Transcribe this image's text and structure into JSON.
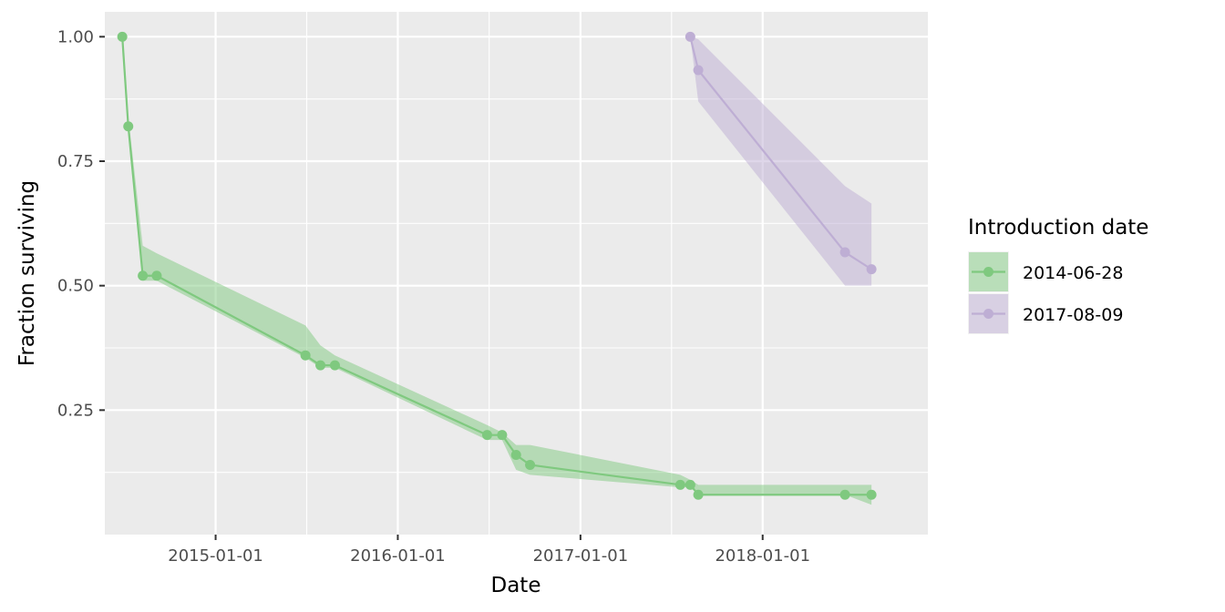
{
  "chart_data": {
    "type": "line",
    "xlabel": "Date",
    "ylabel": "Fraction surviving",
    "xlim": [
      "2014-05-24",
      "2018-11-28"
    ],
    "ylim": [
      0.0,
      1.05
    ],
    "x_ticks": [
      "2015-01-01",
      "2016-01-01",
      "2017-01-01",
      "2018-01-01"
    ],
    "y_ticks": [
      0.25,
      0.5,
      0.75,
      1.0
    ],
    "y_tick_labels": [
      "0.25",
      "0.50",
      "0.75",
      "1.00"
    ],
    "grid": true,
    "legend": {
      "title": "Introduction date",
      "position": "right"
    },
    "series": [
      {
        "name": "2014-06-28",
        "color": "#7fc97f",
        "points": [
          {
            "x": "2014-06-28",
            "y": 1.0
          },
          {
            "x": "2014-07-10",
            "y": 0.82
          },
          {
            "x": "2014-08-08",
            "y": 0.52
          },
          {
            "x": "2014-09-05",
            "y": 0.52
          },
          {
            "x": "2015-06-30",
            "y": 0.36
          },
          {
            "x": "2015-07-30",
            "y": 0.34
          },
          {
            "x": "2015-08-28",
            "y": 0.34
          },
          {
            "x": "2016-06-28",
            "y": 0.2
          },
          {
            "x": "2016-07-28",
            "y": 0.2
          },
          {
            "x": "2016-08-25",
            "y": 0.16
          },
          {
            "x": "2016-09-22",
            "y": 0.14
          },
          {
            "x": "2017-07-20",
            "y": 0.1
          },
          {
            "x": "2017-08-09",
            "y": 0.1
          },
          {
            "x": "2017-08-25",
            "y": 0.08
          },
          {
            "x": "2018-06-15",
            "y": 0.08
          },
          {
            "x": "2018-08-07",
            "y": 0.08
          }
        ],
        "band": [
          {
            "x": "2014-06-28",
            "lower": 1.0,
            "upper": 1.0
          },
          {
            "x": "2014-07-10",
            "lower": 0.81,
            "upper": 0.84
          },
          {
            "x": "2014-08-08",
            "lower": 0.51,
            "upper": 0.58
          },
          {
            "x": "2014-09-05",
            "lower": 0.51,
            "upper": 0.565
          },
          {
            "x": "2015-06-30",
            "lower": 0.355,
            "upper": 0.42
          },
          {
            "x": "2015-07-30",
            "lower": 0.335,
            "upper": 0.38
          },
          {
            "x": "2015-08-28",
            "lower": 0.335,
            "upper": 0.36
          },
          {
            "x": "2016-06-28",
            "lower": 0.19,
            "upper": 0.22
          },
          {
            "x": "2016-07-28",
            "lower": 0.19,
            "upper": 0.205
          },
          {
            "x": "2016-08-25",
            "lower": 0.13,
            "upper": 0.18
          },
          {
            "x": "2016-09-22",
            "lower": 0.12,
            "upper": 0.18
          },
          {
            "x": "2017-07-20",
            "lower": 0.095,
            "upper": 0.12
          },
          {
            "x": "2017-08-09",
            "lower": 0.095,
            "upper": 0.11
          },
          {
            "x": "2017-08-25",
            "lower": 0.08,
            "upper": 0.1
          },
          {
            "x": "2018-06-15",
            "lower": 0.08,
            "upper": 0.1
          },
          {
            "x": "2018-08-07",
            "lower": 0.06,
            "upper": 0.1
          }
        ]
      },
      {
        "name": "2017-08-09",
        "color": "#beaed4",
        "points": [
          {
            "x": "2017-08-09",
            "y": 1.0
          },
          {
            "x": "2017-08-25",
            "y": 0.933
          },
          {
            "x": "2018-06-15",
            "y": 0.567
          },
          {
            "x": "2018-08-07",
            "y": 0.533
          }
        ],
        "band": [
          {
            "x": "2017-08-09",
            "lower": 1.0,
            "upper": 1.0
          },
          {
            "x": "2017-08-25",
            "lower": 0.87,
            "upper": 0.995
          },
          {
            "x": "2018-06-15",
            "lower": 0.5,
            "upper": 0.7
          },
          {
            "x": "2018-08-07",
            "lower": 0.5,
            "upper": 0.665
          }
        ]
      }
    ]
  }
}
